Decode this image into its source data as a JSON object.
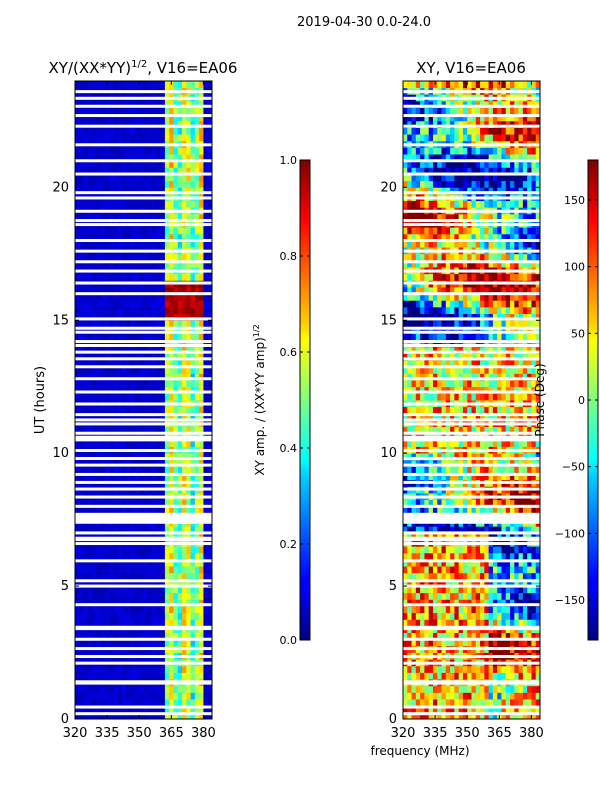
{
  "suptitle": "2019-04-30 0.0-24.0",
  "shared_xlabel": "frequency (MHz)",
  "chart_data": [
    {
      "type": "heatmap",
      "title": "XY/(XX*YY)^{1/2}, V16=EA06",
      "title_main": "XY/(XX*YY)",
      "title_sup": "1/2",
      "title_rest": ", V16=EA06",
      "xlabel": "",
      "ylabel": "UT (hours)",
      "xlim": [
        320,
        384
      ],
      "ylim": [
        0,
        24
      ],
      "xticks": [
        320,
        335,
        350,
        365,
        380
      ],
      "yticks": [
        0,
        5,
        10,
        15,
        20
      ],
      "colorbar": {
        "label": "XY amp. / (XX*YY amp)^{1/2}",
        "label_main": "XY amp. / (XX*YY amp)",
        "label_sup": "1/2",
        "range": [
          0.0,
          1.0
        ],
        "ticks": [
          "0.0",
          "0.2",
          "0.4",
          "0.6",
          "0.8",
          "1.0"
        ],
        "tick_values": [
          0,
          0.2,
          0.4,
          0.6,
          0.8,
          1.0
        ]
      },
      "description_values": {
        "background_level": 0.05,
        "active_band_mhz": [
          362,
          380
        ],
        "band_level": 0.4,
        "peak_level_near_15_5h": 0.9
      }
    },
    {
      "type": "heatmap",
      "title": "XY, V16=EA06",
      "xlabel": "",
      "ylabel": "",
      "xlim": [
        320,
        384
      ],
      "ylim": [
        0,
        24
      ],
      "xticks": [
        320,
        335,
        350,
        365,
        380
      ],
      "yticks": [
        0,
        5,
        10,
        15,
        20
      ],
      "colorbar": {
        "label": "Phase (Deg)",
        "range": [
          -180,
          180
        ],
        "ticks": [
          "−150",
          "−100",
          "−50",
          "0",
          "50",
          "100",
          "150"
        ],
        "tick_values": [
          -150,
          -100,
          -50,
          0,
          50,
          100,
          150
        ]
      }
    }
  ],
  "gap_rows_hours": [
    0.2,
    0.45,
    1.35,
    1.4,
    2.1,
    2.35,
    2.65,
    3.0,
    3.4,
    3.45,
    4.3,
    5.0,
    5.2,
    5.95,
    6.6,
    6.75,
    6.8,
    7.0,
    7.4,
    7.5,
    7.6,
    7.7,
    8.0,
    8.35,
    8.65,
    8.9,
    9.2,
    9.55,
    9.8,
    10.1,
    10.5,
    10.6,
    10.75,
    11.1,
    11.25,
    11.45,
    11.85,
    12.3,
    12.8,
    13.25,
    13.55,
    13.8,
    14.05,
    14.2,
    14.55,
    14.7,
    15.05,
    16.0,
    16.4,
    16.85,
    17.2,
    17.6,
    18.0,
    18.6,
    18.75,
    19.1,
    19.6,
    19.8,
    20.5,
    21.0,
    21.6,
    22.3,
    22.7,
    23.05,
    23.35,
    23.6
  ]
}
